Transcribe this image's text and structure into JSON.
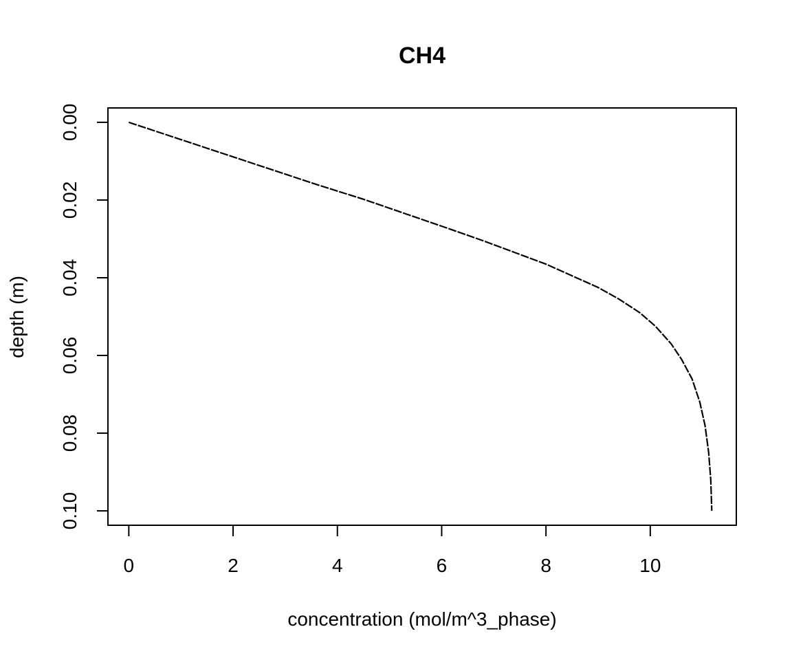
{
  "chart_data": {
    "type": "line",
    "title": "CH4",
    "xlabel": "concentration (mol/m^3_phase)",
    "ylabel": "depth (m)",
    "xlim": [
      -0.4,
      11.65
    ],
    "ylim": [
      0.1037,
      -0.0037
    ],
    "y_reversed": true,
    "grid": false,
    "x_ticks": [
      0,
      2,
      4,
      6,
      8,
      10
    ],
    "x_tick_labels": [
      "0",
      "2",
      "4",
      "6",
      "8",
      "10"
    ],
    "y_ticks": [
      0.0,
      0.02,
      0.04,
      0.06,
      0.08,
      0.1
    ],
    "y_tick_labels": [
      "0.00",
      "0.02",
      "0.04",
      "0.06",
      "0.08",
      "0.10"
    ],
    "series": [
      {
        "color": "#000000",
        "dash": "dashed",
        "points": [
          {
            "x": 0.0,
            "y": 0.0
          },
          {
            "x": 0.9,
            "y": 0.004
          },
          {
            "x": 1.8,
            "y": 0.008
          },
          {
            "x": 2.7,
            "y": 0.012
          },
          {
            "x": 3.6,
            "y": 0.016
          },
          {
            "x": 4.5,
            "y": 0.0198
          },
          {
            "x": 5.3,
            "y": 0.0235
          },
          {
            "x": 6.1,
            "y": 0.0272
          },
          {
            "x": 6.8,
            "y": 0.0305
          },
          {
            "x": 7.4,
            "y": 0.0335
          },
          {
            "x": 8.0,
            "y": 0.0365
          },
          {
            "x": 8.5,
            "y": 0.0395
          },
          {
            "x": 9.0,
            "y": 0.0425
          },
          {
            "x": 9.4,
            "y": 0.0455
          },
          {
            "x": 9.8,
            "y": 0.049
          },
          {
            "x": 10.1,
            "y": 0.0525
          },
          {
            "x": 10.4,
            "y": 0.057
          },
          {
            "x": 10.6,
            "y": 0.061
          },
          {
            "x": 10.8,
            "y": 0.066
          },
          {
            "x": 10.95,
            "y": 0.072
          },
          {
            "x": 11.05,
            "y": 0.078
          },
          {
            "x": 11.12,
            "y": 0.085
          },
          {
            "x": 11.16,
            "y": 0.092
          },
          {
            "x": 11.18,
            "y": 0.1
          }
        ]
      }
    ]
  }
}
